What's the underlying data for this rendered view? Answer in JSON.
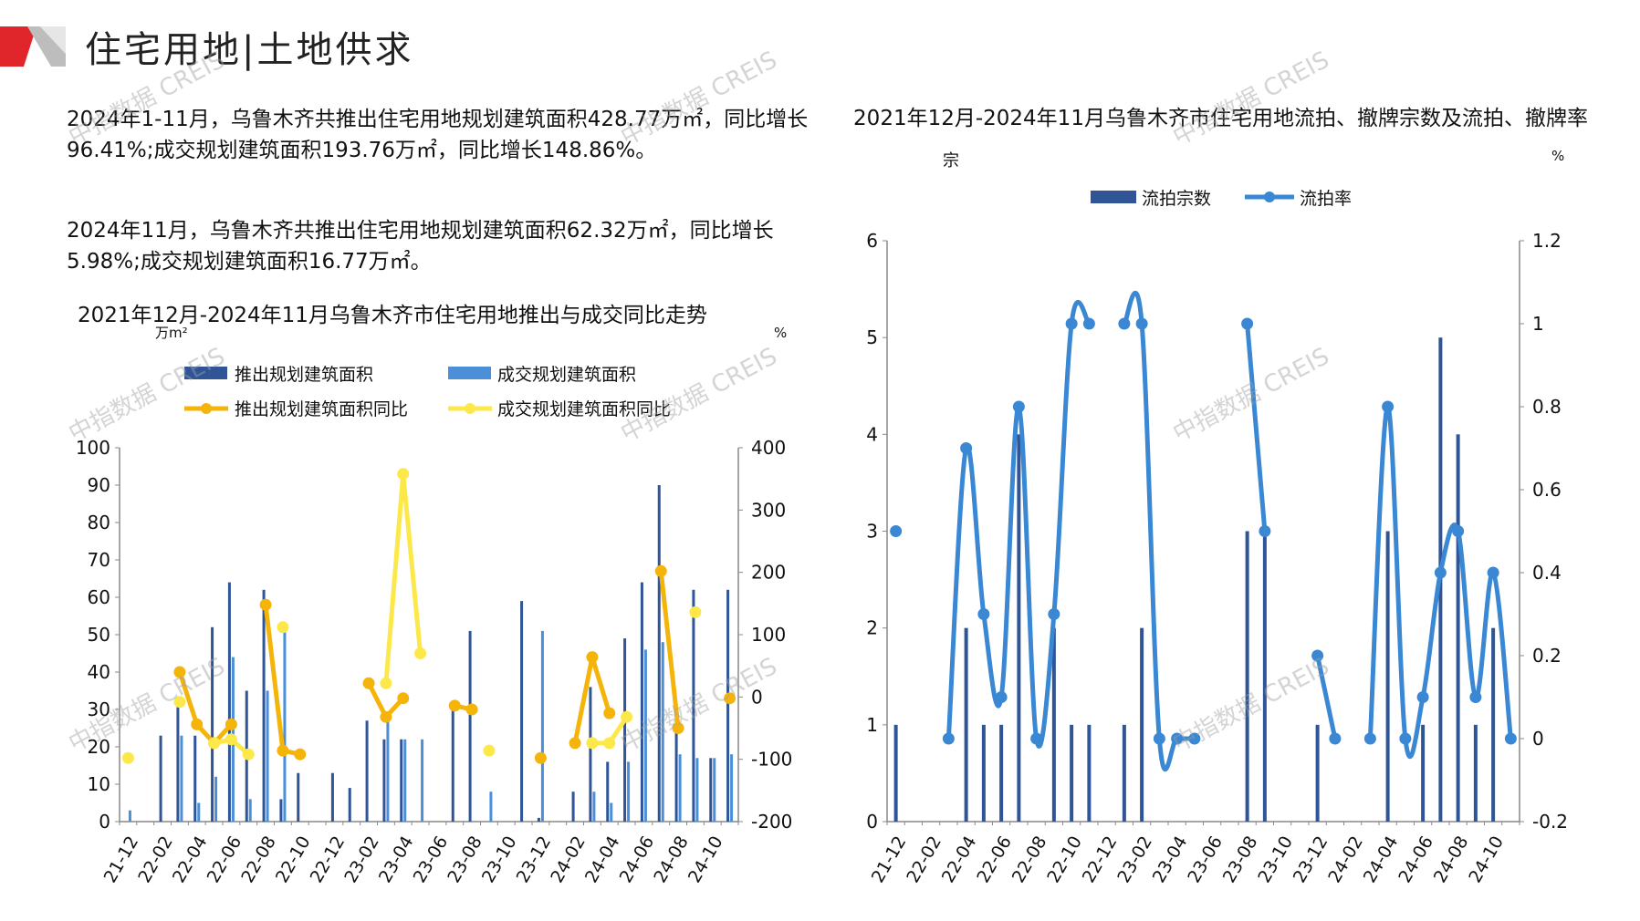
{
  "header": {
    "title": "住宅用地|土地供求",
    "accent": "#e0252b"
  },
  "summary": {
    "p1": "2024年1-11月，乌鲁木齐共推出住宅用地规划建筑面积428.77万㎡，同比增长96.41%;成交规划建筑面积193.76万㎡，同比增长148.86%。",
    "p2": "2024年11月，乌鲁木齐共推出住宅用地规划建筑面积62.32万㎡，同比增长5.98%;成交规划建筑面积16.77万㎡。"
  },
  "watermark": "中指数据 CREIS",
  "chart_data": [
    {
      "type": "bar",
      "title": "2021年12月-2024年11月乌鲁木齐市住宅用地推出与成交同比走势",
      "ylabel": "万m²",
      "y2label": "%",
      "ylim": [
        0,
        100
      ],
      "yticks": [
        0,
        10,
        20,
        30,
        40,
        50,
        60,
        70,
        80,
        90,
        100
      ],
      "y2lim": [
        -200,
        400
      ],
      "y2ticks": [
        -200,
        -100,
        0,
        100,
        200,
        300,
        400
      ],
      "categories": [
        "21-12",
        "22-01",
        "22-02",
        "22-03",
        "22-04",
        "22-05",
        "22-06",
        "22-07",
        "22-08",
        "22-09",
        "22-10",
        "22-11",
        "22-12",
        "23-01",
        "23-02",
        "23-03",
        "23-04",
        "23-05",
        "23-06",
        "23-07",
        "23-08",
        "23-09",
        "23-10",
        "23-11",
        "23-12",
        "24-01",
        "24-02",
        "24-03",
        "24-04",
        "24-05",
        "24-06",
        "24-07",
        "24-08",
        "24-09",
        "24-10",
        "24-11"
      ],
      "tick_labels": [
        "21-12",
        "22-02",
        "22-04",
        "22-06",
        "22-08",
        "22-10",
        "22-12",
        "23-02",
        "23-04",
        "23-06",
        "23-08",
        "23-10",
        "23-12",
        "24-02",
        "24-04",
        "24-06",
        "24-08",
        "24-10"
      ],
      "series": [
        {
          "name": "推出规划建筑面积",
          "kind": "bar",
          "axis": "left",
          "color": "#2f5597",
          "values": [
            0,
            0,
            23,
            31,
            23,
            52,
            64,
            35,
            62,
            6,
            13,
            0,
            13,
            9,
            27,
            22,
            22,
            0,
            0,
            30,
            51,
            0,
            0,
            59,
            1,
            0,
            8,
            36,
            16,
            49,
            64,
            90,
            24,
            62,
            17,
            62
          ]
        },
        {
          "name": "成交规划建筑面积",
          "kind": "bar",
          "axis": "left",
          "color": "#4a8fd8",
          "values": [
            3,
            0,
            0,
            23,
            5,
            12,
            44,
            6,
            35,
            52,
            0,
            0,
            0,
            0,
            0,
            28,
            22,
            22,
            0,
            0,
            0,
            8,
            0,
            0,
            51,
            0,
            0,
            8,
            5,
            16,
            46,
            48,
            18,
            17,
            17,
            18
          ]
        },
        {
          "name": "推出规划建筑面积同比",
          "kind": "line",
          "axis": "right",
          "color": "#f5b40a",
          "values": [
            null,
            null,
            null,
            40,
            -44,
            -74,
            -44,
            null,
            148,
            -86,
            -92,
            null,
            null,
            null,
            22,
            -32,
            -2,
            null,
            null,
            -14,
            -20,
            null,
            null,
            null,
            -98,
            null,
            -74,
            64,
            -26,
            null,
            null,
            202,
            -50,
            null,
            null,
            -2
          ]
        },
        {
          "name": "成交规划建筑面积同比",
          "kind": "line",
          "axis": "right",
          "color": "#fde84a",
          "values": [
            -98,
            null,
            null,
            -8,
            null,
            -74,
            -68,
            -92,
            null,
            112,
            null,
            null,
            null,
            null,
            null,
            22,
            358,
            70,
            null,
            null,
            null,
            -86,
            null,
            null,
            null,
            null,
            null,
            -74,
            -74,
            -32,
            null,
            null,
            null,
            136,
            null,
            null
          ]
        }
      ]
    },
    {
      "type": "bar",
      "title": "2021年12月-2024年11月乌鲁木齐市住宅用地流拍、撤牌宗数及流拍、撤牌率",
      "ylabel": "宗",
      "y2label": "%",
      "ylim": [
        0,
        6
      ],
      "yticks": [
        0,
        1,
        2,
        3,
        4,
        5,
        6
      ],
      "y2lim": [
        -0.2,
        1.2
      ],
      "y2ticks": [
        "-0.2",
        "0",
        "0.2",
        "0.4",
        "0.6",
        "0.8",
        "1",
        "1.2"
      ],
      "categories": [
        "21-12",
        "22-01",
        "22-02",
        "22-03",
        "22-04",
        "22-05",
        "22-06",
        "22-07",
        "22-08",
        "22-09",
        "22-10",
        "22-11",
        "22-12",
        "23-01",
        "23-02",
        "23-03",
        "23-04",
        "23-05",
        "23-06",
        "23-07",
        "23-08",
        "23-09",
        "23-10",
        "23-11",
        "23-12",
        "24-01",
        "24-02",
        "24-03",
        "24-04",
        "24-05",
        "24-06",
        "24-07",
        "24-08",
        "24-09",
        "24-10",
        "24-11"
      ],
      "tick_labels": [
        "21-12",
        "22-02",
        "22-04",
        "22-06",
        "22-08",
        "22-10",
        "22-12",
        "23-02",
        "23-04",
        "23-06",
        "23-08",
        "23-10",
        "23-12",
        "24-02",
        "24-04",
        "24-06",
        "24-08",
        "24-10"
      ],
      "series": [
        {
          "name": "流拍宗数",
          "kind": "bar",
          "axis": "left",
          "color": "#2f5597",
          "values": [
            1,
            0,
            0,
            0,
            2,
            1,
            1,
            4,
            0,
            2,
            1,
            1,
            0,
            1,
            2,
            0,
            0,
            0,
            0,
            0,
            3,
            3,
            0,
            0,
            1,
            0,
            0,
            0,
            3,
            0,
            1,
            5,
            4,
            1,
            2,
            0
          ]
        },
        {
          "name": "流拍率",
          "kind": "line",
          "axis": "right",
          "color": "#3a87d3",
          "values": [
            0.5,
            null,
            null,
            0,
            0.7,
            0.3,
            0.1,
            0.8,
            0,
            0.3,
            1,
            1,
            null,
            1,
            1,
            0,
            0,
            0,
            null,
            null,
            1,
            0.5,
            null,
            null,
            0.2,
            0,
            null,
            0,
            0.8,
            0,
            0.1,
            0.4,
            0.5,
            0.1,
            0.4,
            0
          ]
        }
      ]
    }
  ]
}
